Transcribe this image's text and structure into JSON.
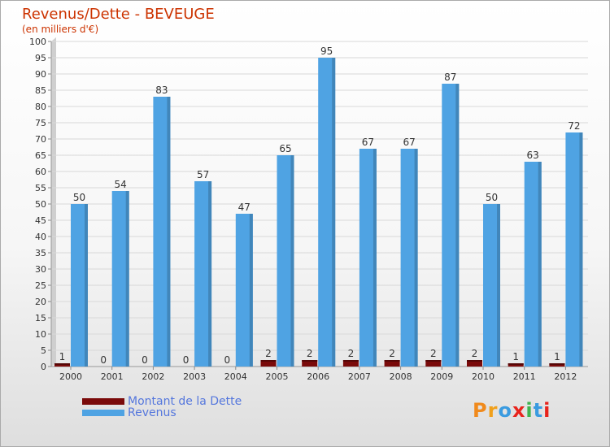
{
  "chart_data": {
    "type": "bar",
    "title": "Revenus/Dette - BEVEUGE",
    "subtitle": "(en milliers d'€)",
    "categories": [
      "2000",
      "2001",
      "2002",
      "2003",
      "2004",
      "2005",
      "2006",
      "2007",
      "2008",
      "2009",
      "2010",
      "2011",
      "2012"
    ],
    "series": [
      {
        "name": "Montant de la Dette",
        "color": "#7a0a0a",
        "values": [
          1,
          0,
          0,
          0,
          0,
          2,
          2,
          2,
          2,
          2,
          2,
          1,
          1
        ]
      },
      {
        "name": "Revenus",
        "color": "#4fa3e3",
        "values": [
          50,
          54,
          83,
          57,
          47,
          65,
          95,
          67,
          67,
          87,
          50,
          63,
          72
        ]
      }
    ],
    "ylim": [
      0,
      100
    ],
    "ytick_step": 5,
    "grid": true,
    "legend": "bottom-left"
  },
  "logo": {
    "text": "Proxiti",
    "letter_colors": [
      "#f08a1c",
      "#f0a01c",
      "#3a9be0",
      "#e8231c",
      "#3fb34f",
      "#3a9be0",
      "#e8231c"
    ]
  }
}
